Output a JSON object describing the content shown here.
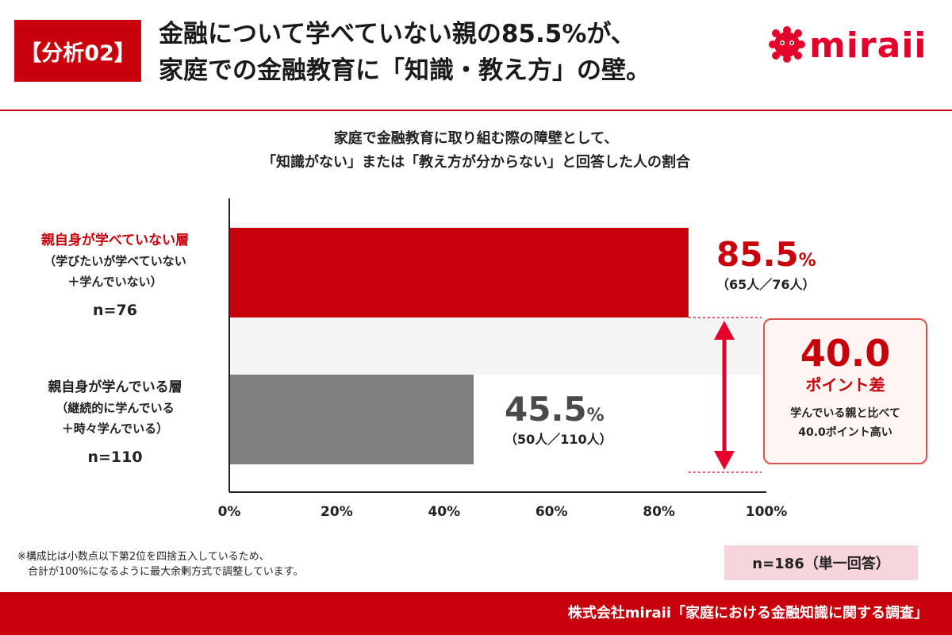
{
  "header": {
    "badge": "【分析02】",
    "title_line1": "金融について学べていない親の85.5%が、",
    "title_line2": "家庭での金融教育に「知識・教え方」の壁。",
    "logo_text": "miraii"
  },
  "colors": {
    "accent": "#c8000b",
    "bar_primary": "#c8000b",
    "bar_secondary": "#808080",
    "callout_bg": "#fff6f4",
    "nbox_bg": "#f6d6dc"
  },
  "chart_data": {
    "type": "bar",
    "orientation": "horizontal",
    "title_line1": "家庭で金融教育に取り組む際の障壁として、",
    "title_line2": "「知識がない」または「教え方が分からない」と回答した人の割合",
    "xlim": [
      0,
      100
    ],
    "x_ticks": [
      "0%",
      "20%",
      "40%",
      "60%",
      "80%",
      "100%"
    ],
    "categories": [
      {
        "name": "親自身が学べていない層",
        "sub1": "（学びたいが学べていない",
        "sub2": "＋学んでいない）",
        "n_label": "n=76",
        "value": 85.5,
        "value_label": "85.5",
        "unit": "%",
        "count_label": "（65人／76人）"
      },
      {
        "name": "親自身が学んでいる層",
        "sub1": "（継続的に学んでいる",
        "sub2": "＋時々学んでいる）",
        "n_label": "n=110",
        "value": 45.5,
        "value_label": "45.5",
        "unit": "%",
        "count_label": "（50人／110人）"
      }
    ],
    "difference": {
      "value": 40.0,
      "value_label": "40.0",
      "unit_label": "ポイント差",
      "desc1": "学んでいる親と比べて",
      "desc2": "40.0ポイント高い"
    }
  },
  "notes": {
    "line1": "※構成比は小数点以下第2位を四捨五入しているため、",
    "line2": "　合計が100%になるように最大余剰方式で調整しています。"
  },
  "sample_size": "n=186（単一回答）",
  "footer": "株式会社miraii「家庭における金融知識に関する調査」"
}
